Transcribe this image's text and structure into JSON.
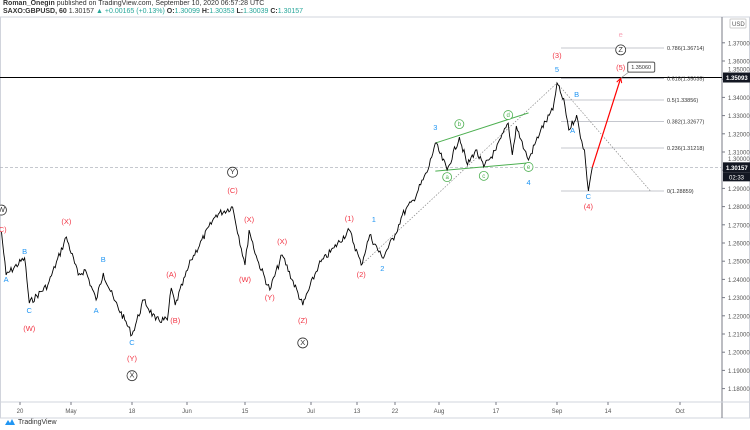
{
  "header": {
    "author": "Roman_Onegin",
    "published": "published on TradingView.com, September 10, 2020 06:57:28 UTC",
    "symbol": "SAXO:GBPUSD, 60",
    "last": "1.30157",
    "change": "+0.00165 (+0.13%)",
    "o_label": "O:",
    "o": "1.30099",
    "h_label": "H:",
    "h": "1.30353",
    "l_label": "L:",
    "l": "1.30039",
    "c_label": "C:",
    "c": "1.30157"
  },
  "footer": {
    "brand": "TradingView"
  },
  "colors": {
    "price": "#000000",
    "wave_red": "#f23645",
    "wave_blue": "#2196f3",
    "wave_green": "#4caf50",
    "fib": "#b2b5be",
    "arrow": "#ff0000",
    "e_label": "#f8a5b8"
  },
  "chart_data": {
    "type": "line",
    "currency": "USD",
    "y_ticks": [
      "1.37000",
      "1.36000",
      "1.35000",
      "1.34000",
      "1.33000",
      "1.32000",
      "1.31000",
      "1.30000",
      "1.29000",
      "1.28000",
      "1.27000",
      "1.26000",
      "1.25000",
      "1.24000",
      "1.23000",
      "1.22000",
      "1.21000",
      "1.20000",
      "1.19000",
      "1.18000"
    ],
    "x_ticks": [
      {
        "label": "20",
        "date": "2020-04-20"
      },
      {
        "label": "May",
        "date": "2020-05-01"
      },
      {
        "label": "18",
        "date": "2020-05-18"
      },
      {
        "label": "Jun",
        "date": "2020-06-01"
      },
      {
        "label": "15",
        "date": "2020-06-15"
      },
      {
        "label": "Jul",
        "date": "2020-07-01"
      },
      {
        "label": "13",
        "date": "2020-07-13"
      },
      {
        "label": "22",
        "date": "2020-07-22"
      },
      {
        "label": "Aug",
        "date": "2020-08-03"
      },
      {
        "label": "17",
        "date": "2020-08-17"
      },
      {
        "label": "Sep",
        "date": "2020-09-01"
      },
      {
        "label": "14",
        "date": "2020-09-14"
      },
      {
        "label": "Oct",
        "date": "2020-10-01"
      }
    ],
    "series": [
      {
        "points": [
          [
            "2020-04-16",
            1.266
          ],
          [
            "2020-04-17",
            1.2424
          ],
          [
            "2020-04-21",
            1.2518
          ],
          [
            "2020-04-22",
            1.227
          ],
          [
            "2020-04-26",
            1.2369
          ],
          [
            "2020-04-30",
            1.2633
          ],
          [
            "2020-05-03",
            1.2424
          ],
          [
            "2020-05-05",
            1.2452
          ],
          [
            "2020-05-08",
            1.2287
          ],
          [
            "2020-05-10",
            1.2435
          ],
          [
            "2020-05-13",
            1.2287
          ],
          [
            "2020-05-16",
            1.2177
          ],
          [
            "2020-05-18",
            1.2095
          ],
          [
            "2020-05-21",
            1.2287
          ],
          [
            "2020-05-24",
            1.2177
          ],
          [
            "2020-05-27",
            1.2177
          ],
          [
            "2020-05-28",
            1.2353
          ],
          [
            "2020-05-29",
            1.2259
          ],
          [
            "2020-06-02",
            1.2507
          ],
          [
            "2020-06-08",
            1.2754
          ],
          [
            "2020-06-12",
            1.2798
          ],
          [
            "2020-06-15",
            1.2479
          ],
          [
            "2020-06-16",
            1.2671
          ],
          [
            "2020-06-18",
            1.2507
          ],
          [
            "2020-06-21",
            1.2342
          ],
          [
            "2020-06-24",
            1.2534
          ],
          [
            "2020-06-29",
            1.2259
          ],
          [
            "2020-07-03",
            1.2479
          ],
          [
            "2020-07-07",
            1.2573
          ],
          [
            "2020-07-11",
            1.2671
          ],
          [
            "2020-07-14",
            1.2479
          ],
          [
            "2020-07-16",
            1.2644
          ],
          [
            "2020-07-19",
            1.2518
          ],
          [
            "2020-07-22",
            1.2644
          ],
          [
            "2020-07-24",
            1.2754
          ],
          [
            "2020-07-27",
            1.2836
          ],
          [
            "2020-07-31",
            1.3001
          ],
          [
            "2020-08-02",
            1.3149
          ],
          [
            "2020-08-05",
            1.3001
          ],
          [
            "2020-08-08",
            1.3182
          ],
          [
            "2020-08-10",
            1.3029
          ],
          [
            "2020-08-12",
            1.3111
          ],
          [
            "2020-08-14",
            1.3018
          ],
          [
            "2020-08-17",
            1.3111
          ],
          [
            "2020-08-20",
            1.3259
          ],
          [
            "2020-08-21",
            1.3084
          ],
          [
            "2020-08-22",
            1.3243
          ],
          [
            "2020-08-24",
            1.3111
          ],
          [
            "2020-08-25",
            1.3056
          ],
          [
            "2020-08-28",
            1.3221
          ],
          [
            "2020-08-31",
            1.3331
          ],
          [
            "2020-09-01",
            1.3479
          ],
          [
            "2020-09-03",
            1.3358
          ],
          [
            "2020-09-04",
            1.3221
          ],
          [
            "2020-09-06",
            1.3303
          ],
          [
            "2020-09-07",
            1.3177
          ],
          [
            "2020-09-08",
            1.3111
          ],
          [
            "2020-09-09",
            1.2886
          ],
          [
            "2020-09-10",
            1.30157
          ]
        ]
      }
    ],
    "horizontal_lines": [
      {
        "price": 1.35093,
        "label": "1.35093",
        "style": "solid"
      },
      {
        "price": 1.30157,
        "label": "1.30157",
        "countdown": "02:33",
        "style": "dashed"
      }
    ],
    "fib_levels": [
      {
        "label": "0.786(1.36714)",
        "price": 1.36714
      },
      {
        "label": "0.618(1.35035)",
        "price": 1.35035
      },
      {
        "label": "0.5(1.33856)",
        "price": 1.33856
      },
      {
        "label": "0.382(1.32677)",
        "price": 1.32677
      },
      {
        "label": "0.236(1.31218)",
        "price": 1.31218
      },
      {
        "label": "0(1.28859)",
        "price": 1.28859
      }
    ],
    "projection": {
      "from": [
        "2020-09-10",
        1.30157
      ],
      "to": [
        "2020-09-17",
        1.3506
      ],
      "callout": "1.35060"
    },
    "trend_lines": [
      {
        "style": "dotted",
        "from": [
          "2020-07-14",
          1.2479
        ],
        "to": [
          "2020-09-01",
          1.3479
        ]
      },
      {
        "style": "dotted",
        "from": [
          "2020-09-01",
          1.3479
        ],
        "to": [
          "2020-09-24",
          1.2886
        ]
      },
      {
        "style": "green",
        "from": [
          "2020-08-02",
          1.3149
        ],
        "to": [
          "2020-08-25",
          1.3315
        ]
      },
      {
        "style": "green",
        "from": [
          "2020-08-02",
          1.2995
        ],
        "to": [
          "2020-08-25",
          1.304
        ]
      }
    ],
    "wave_labels": [
      {
        "t": "W",
        "c": "circle",
        "d": "2020-04-16",
        "p": 1.277
      },
      {
        "t": "(C)",
        "c": "red",
        "d": "2020-04-16",
        "p": 1.266
      },
      {
        "t": "B",
        "c": "blue",
        "d": "2020-04-21",
        "p": 1.254
      },
      {
        "t": "A",
        "c": "blue",
        "d": "2020-04-17",
        "p": 1.2385
      },
      {
        "t": "C",
        "c": "blue",
        "d": "2020-04-22",
        "p": 1.2215
      },
      {
        "t": "(W)",
        "c": "red",
        "d": "2020-04-22",
        "p": 1.2117
      },
      {
        "t": "(X)",
        "c": "red",
        "d": "2020-04-30",
        "p": 1.2705
      },
      {
        "t": "A",
        "c": "blue",
        "d": "2020-05-08",
        "p": 1.2215
      },
      {
        "t": "B",
        "c": "blue",
        "d": "2020-05-10",
        "p": 1.2495
      },
      {
        "t": "C",
        "c": "blue",
        "d": "2020-05-18",
        "p": 1.204
      },
      {
        "t": "(Y)",
        "c": "red",
        "d": "2020-05-18",
        "p": 1.1952
      },
      {
        "t": "X",
        "c": "circle",
        "d": "2020-05-18",
        "p": 1.186
      },
      {
        "t": "(A)",
        "c": "red",
        "d": "2020-05-28",
        "p": 1.2412
      },
      {
        "t": "(B)",
        "c": "red",
        "d": "2020-05-29",
        "p": 1.216
      },
      {
        "t": "Y",
        "c": "circle",
        "d": "2020-06-12",
        "p": 1.2978
      },
      {
        "t": "(C)",
        "c": "red",
        "d": "2020-06-12",
        "p": 1.2874
      },
      {
        "t": "(X)",
        "c": "red",
        "d": "2020-06-16",
        "p": 1.2715
      },
      {
        "t": "(W)",
        "c": "red",
        "d": "2020-06-15",
        "p": 1.2385
      },
      {
        "t": "(Y)",
        "c": "red",
        "d": "2020-06-21",
        "p": 1.2287
      },
      {
        "t": "(X)",
        "c": "red",
        "d": "2020-06-24",
        "p": 1.2594
      },
      {
        "t": "(Z)",
        "c": "red",
        "d": "2020-06-29",
        "p": 1.216
      },
      {
        "t": "X",
        "c": "circle",
        "d": "2020-06-29",
        "p": 1.204
      },
      {
        "t": "(1)",
        "c": "red",
        "d": "2020-07-11",
        "p": 1.272
      },
      {
        "t": "1",
        "c": "blue",
        "d": "2020-07-17",
        "p": 1.2715
      },
      {
        "t": "(2)",
        "c": "red",
        "d": "2020-07-14",
        "p": 1.2413
      },
      {
        "t": "2",
        "c": "blue",
        "d": "2020-07-19",
        "p": 1.2446
      },
      {
        "t": "3",
        "c": "blue",
        "d": "2020-08-02",
        "p": 1.322
      },
      {
        "t": "a",
        "c": "green",
        "d": "2020-08-05",
        "p": 1.2951
      },
      {
        "t": "b",
        "c": "green",
        "d": "2020-08-08",
        "p": 1.3242
      },
      {
        "t": "c",
        "c": "green",
        "d": "2020-08-14",
        "p": 1.2958
      },
      {
        "t": "d",
        "c": "green",
        "d": "2020-08-20",
        "p": 1.3292
      },
      {
        "t": "e",
        "c": "green",
        "d": "2020-08-25",
        "p": 1.3007
      },
      {
        "t": "4",
        "c": "blue",
        "d": "2020-08-25",
        "p": 1.2918
      },
      {
        "t": "(3)",
        "c": "red",
        "d": "2020-09-01",
        "p": 1.3616
      },
      {
        "t": "5",
        "c": "blue",
        "d": "2020-09-01",
        "p": 1.354
      },
      {
        "t": "B",
        "c": "blue",
        "d": "2020-09-06",
        "p": 1.3402
      },
      {
        "t": "A",
        "c": "blue",
        "d": "2020-09-05",
        "p": 1.3204
      },
      {
        "t": "C",
        "c": "blue",
        "d": "2020-09-09",
        "p": 1.2841
      },
      {
        "t": "(4)",
        "c": "red",
        "d": "2020-09-09",
        "p": 1.2786
      },
      {
        "t": "(5)",
        "c": "red",
        "d": "2020-09-17",
        "p": 1.355
      },
      {
        "t": "Z",
        "c": "circle",
        "d": "2020-09-17",
        "p": 1.365
      },
      {
        "t": "e",
        "c": "pink",
        "d": "2020-09-17",
        "p": 1.3733
      }
    ]
  }
}
